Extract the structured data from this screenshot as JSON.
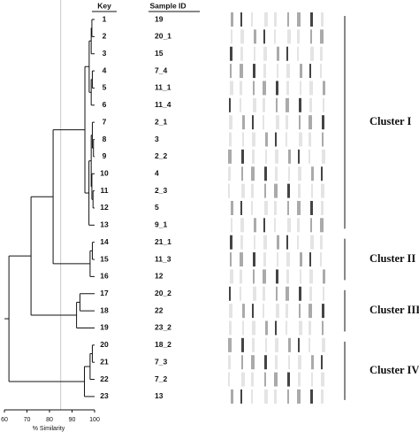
{
  "chart_data": {
    "type": "dendrogram",
    "x_label": "% Similarity",
    "key_header": "Key",
    "sample_header": "Sample ID",
    "xlim": [
      60,
      100
    ],
    "xticks": [
      60,
      70,
      80,
      90,
      100
    ],
    "reference_line": 85,
    "tree": {
      "similarity": 62,
      "children": [
        {
          "similarity": 71.8,
          "children": [
            {
              "similarity": 81.6,
              "children": [
                {
                  "similarity": 95.7,
                  "cluster": "Cluster I",
                  "children": [
                    {
                      "similarity": 97.6,
                      "children": [
                        {
                          "similarity": 98.5,
                          "children": [
                            {
                              "similarity": 98.8,
                              "children": [
                                {
                                  "key": "1",
                                  "sample": "19"
                                },
                                {
                                  "key": "2",
                                  "sample": "20_1"
                                }
                              ]
                            },
                            {
                              "key": "3",
                              "sample": "15"
                            }
                          ]
                        },
                        {
                          "similarity": 98.5,
                          "children": [
                            {
                              "similarity": 99,
                              "children": [
                                {
                                  "key": "4",
                                  "sample": "7_4"
                                },
                                {
                                  "key": "5",
                                  "sample": "11_1"
                                }
                              ]
                            },
                            {
                              "key": "6",
                              "sample": "11_4"
                            }
                          ]
                        }
                      ]
                    },
                    {
                      "similarity": 97.5,
                      "children": [
                        {
                          "similarity": 98.5,
                          "children": [
                            {
                              "similarity": 99,
                              "children": [
                                {
                                  "key": "7",
                                  "sample": "2_1"
                                },
                                {
                                  "similarity": 99.5,
                                  "children": [
                                    {
                                      "key": "8",
                                      "sample": "3"
                                    },
                                    {
                                      "key": "9",
                                      "sample": "2_2"
                                    }
                                  ]
                                }
                              ]
                            },
                            {
                              "similarity": 98.8,
                              "children": [
                                {
                                  "key": "10",
                                  "sample": "4"
                                },
                                {
                                  "similarity": 99.3,
                                  "children": [
                                    {
                                      "key": "11",
                                      "sample": "2_3"
                                    },
                                    {
                                      "key": "12",
                                      "sample": "5"
                                    }
                                  ]
                                }
                              ]
                            }
                          ]
                        },
                        {
                          "key": "13",
                          "sample": "9_1"
                        }
                      ]
                    }
                  ]
                },
                {
                  "similarity": 98,
                  "cluster": "Cluster II",
                  "children": [
                    {
                      "similarity": 99,
                      "children": [
                        {
                          "key": "14",
                          "sample": "21_1"
                        },
                        {
                          "key": "15",
                          "sample": "11_3"
                        }
                      ]
                    },
                    {
                      "key": "16",
                      "sample": "12"
                    }
                  ]
                }
              ]
            },
            {
              "similarity": 92,
              "cluster": "Cluster III",
              "children": [
                {
                  "similarity": 93.5,
                  "children": [
                    {
                      "key": "17",
                      "sample": "20_2"
                    },
                    {
                      "key": "18",
                      "sample": "22"
                    }
                  ]
                },
                {
                  "key": "19",
                  "sample": "23_2"
                }
              ]
            }
          ]
        },
        {
          "similarity": 95.5,
          "cluster": "Cluster IV",
          "children": [
            {
              "similarity": 98,
              "children": [
                {
                  "similarity": 99,
                  "children": [
                    {
                      "key": "20",
                      "sample": "18_2"
                    },
                    {
                      "key": "21",
                      "sample": "7_3"
                    }
                  ]
                },
                {
                  "key": "22",
                  "sample": "7_2"
                }
              ]
            },
            {
              "key": "23",
              "sample": "13"
            }
          ]
        }
      ]
    }
  }
}
